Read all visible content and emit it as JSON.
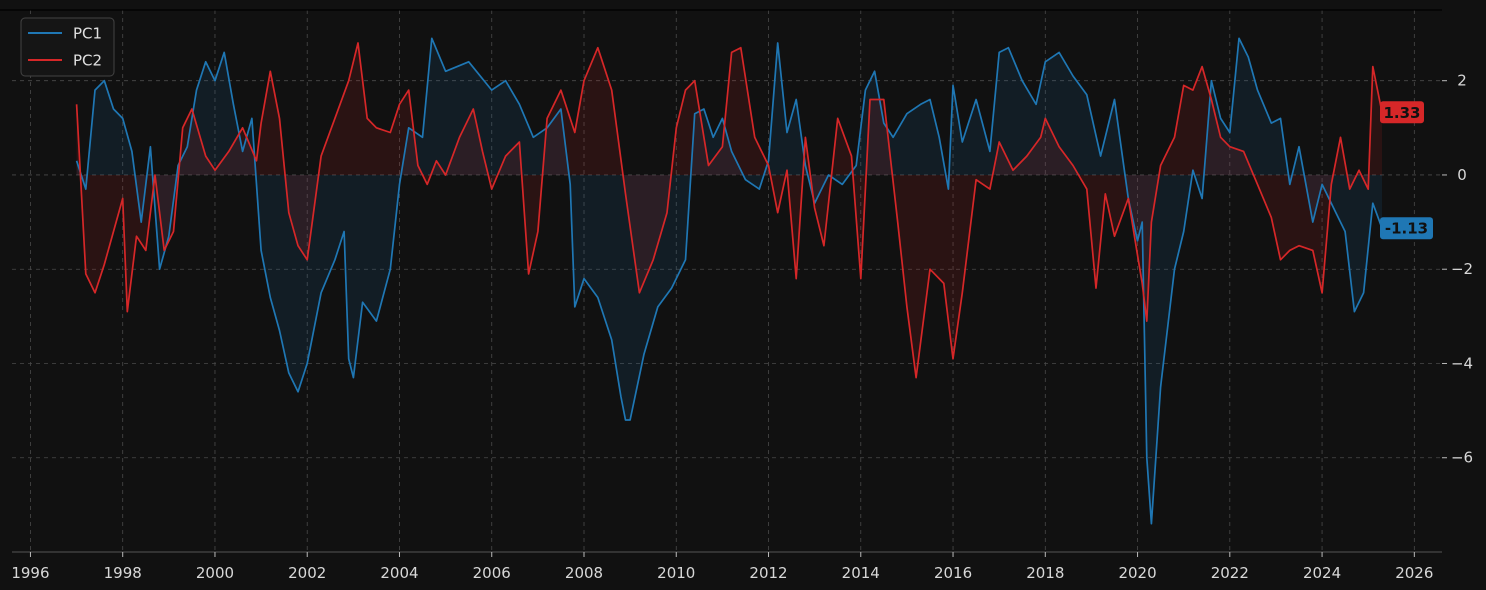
{
  "chart_data": {
    "type": "line",
    "title": "",
    "xlabel": "",
    "ylabel": "",
    "xlim": [
      1995.6,
      2026.6
    ],
    "ylim": [
      -8.0,
      3.5
    ],
    "x_ticks": [
      1996,
      1998,
      2000,
      2002,
      2004,
      2006,
      2008,
      2010,
      2012,
      2014,
      2016,
      2018,
      2020,
      2022,
      2024,
      2026
    ],
    "y_ticks": [
      -6,
      -4,
      -2,
      0,
      2
    ],
    "y_tick_labels": [
      "−6",
      "−4",
      "−2",
      "0",
      "2"
    ],
    "grid": true,
    "legend_position": "top-left",
    "zero_fill": true,
    "series": [
      {
        "name": "PC1",
        "color": "#1f77b4",
        "end_label": "-1.13",
        "x": [
          1997.0,
          1997.2,
          1997.4,
          1997.6,
          1997.8,
          1998.0,
          1998.2,
          1998.4,
          1998.6,
          1998.8,
          1999.0,
          1999.2,
          1999.4,
          1999.6,
          1999.8,
          2000.0,
          2000.2,
          2000.4,
          2000.6,
          2000.8,
          2001.0,
          2001.2,
          2001.4,
          2001.6,
          2001.8,
          2002.0,
          2002.3,
          2002.6,
          2002.8,
          2002.9,
          2003.0,
          2003.2,
          2003.5,
          2003.8,
          2004.0,
          2004.2,
          2004.5,
          2004.7,
          2005.0,
          2005.5,
          2006.0,
          2006.3,
          2006.6,
          2006.9,
          2007.2,
          2007.5,
          2007.7,
          2007.8,
          2008.0,
          2008.3,
          2008.6,
          2008.8,
          2008.9,
          2009.0,
          2009.3,
          2009.6,
          2009.9,
          2010.2,
          2010.4,
          2010.6,
          2010.8,
          2011.0,
          2011.2,
          2011.5,
          2011.8,
          2012.0,
          2012.2,
          2012.4,
          2012.6,
          2012.8,
          2013.0,
          2013.3,
          2013.6,
          2013.9,
          2014.1,
          2014.3,
          2014.5,
          2014.7,
          2015.0,
          2015.3,
          2015.5,
          2015.7,
          2015.9,
          2016.0,
          2016.2,
          2016.5,
          2016.8,
          2017.0,
          2017.2,
          2017.5,
          2017.8,
          2018.0,
          2018.3,
          2018.6,
          2018.9,
          2019.2,
          2019.5,
          2019.8,
          2020.0,
          2020.1,
          2020.2,
          2020.3,
          2020.5,
          2020.8,
          2021.0,
          2021.2,
          2021.4,
          2021.6,
          2021.8,
          2022.0,
          2022.2,
          2022.4,
          2022.6,
          2022.9,
          2023.1,
          2023.3,
          2023.5,
          2023.8,
          2024.0,
          2024.3,
          2024.5,
          2024.7,
          2024.9,
          2025.1,
          2025.3
        ],
        "y": [
          0.3,
          -0.3,
          1.8,
          2.0,
          1.4,
          1.2,
          0.5,
          -1.0,
          0.6,
          -2.0,
          -1.3,
          0.2,
          0.6,
          1.8,
          2.4,
          2.0,
          2.6,
          1.5,
          0.5,
          1.2,
          -1.6,
          -2.6,
          -3.3,
          -4.2,
          -4.6,
          -4.0,
          -2.5,
          -1.8,
          -1.2,
          -3.9,
          -4.3,
          -2.7,
          -3.1,
          -2.0,
          -0.2,
          1.0,
          0.8,
          2.9,
          2.2,
          2.4,
          1.8,
          2.0,
          1.5,
          0.8,
          1.0,
          1.4,
          -0.2,
          -2.8,
          -2.2,
          -2.6,
          -3.5,
          -4.7,
          -5.2,
          -5.2,
          -3.8,
          -2.8,
          -2.4,
          -1.8,
          1.3,
          1.4,
          0.8,
          1.2,
          0.5,
          -0.1,
          -0.3,
          0.3,
          2.8,
          0.9,
          1.6,
          0.2,
          -0.6,
          0.0,
          -0.2,
          0.2,
          1.8,
          2.2,
          1.1,
          0.8,
          1.3,
          1.5,
          1.6,
          0.8,
          -0.3,
          1.9,
          0.7,
          1.6,
          0.5,
          2.6,
          2.7,
          2.0,
          1.5,
          2.4,
          2.6,
          2.1,
          1.7,
          0.4,
          1.6,
          -0.5,
          -1.4,
          -1.0,
          -6.0,
          -7.4,
          -4.5,
          -2.0,
          -1.2,
          0.1,
          -0.5,
          2.0,
          1.2,
          0.9,
          2.9,
          2.5,
          1.8,
          1.1,
          1.2,
          -0.2,
          0.6,
          -1.0,
          -0.2,
          -0.8,
          -1.2,
          -2.9,
          -2.5,
          -0.6,
          -1.13
        ]
      },
      {
        "name": "PC2",
        "color": "#d62728",
        "end_label": "1.33",
        "x": [
          1997.0,
          1997.2,
          1997.4,
          1997.6,
          1997.8,
          1998.0,
          1998.1,
          1998.3,
          1998.5,
          1998.7,
          1998.9,
          1999.1,
          1999.3,
          1999.5,
          1999.8,
          2000.0,
          2000.3,
          2000.6,
          2000.9,
          2001.0,
          2001.2,
          2001.4,
          2001.6,
          2001.8,
          2002.0,
          2002.3,
          2002.6,
          2002.9,
          2003.1,
          2003.3,
          2003.5,
          2003.8,
          2004.0,
          2004.2,
          2004.4,
          2004.6,
          2004.8,
          2005.0,
          2005.3,
          2005.6,
          2005.8,
          2006.0,
          2006.3,
          2006.6,
          2006.8,
          2007.0,
          2007.2,
          2007.5,
          2007.8,
          2008.0,
          2008.3,
          2008.6,
          2008.9,
          2009.2,
          2009.5,
          2009.8,
          2010.0,
          2010.2,
          2010.4,
          2010.7,
          2011.0,
          2011.2,
          2011.4,
          2011.7,
          2012.0,
          2012.2,
          2012.4,
          2012.6,
          2012.8,
          2013.0,
          2013.2,
          2013.5,
          2013.8,
          2014.0,
          2014.2,
          2014.5,
          2014.8,
          2015.0,
          2015.2,
          2015.5,
          2015.8,
          2016.0,
          2016.2,
          2016.5,
          2016.8,
          2017.0,
          2017.3,
          2017.6,
          2017.9,
          2018.0,
          2018.3,
          2018.6,
          2018.9,
          2019.1,
          2019.3,
          2019.5,
          2019.8,
          2020.0,
          2020.1,
          2020.2,
          2020.3,
          2020.5,
          2020.8,
          2021.0,
          2021.2,
          2021.4,
          2021.6,
          2021.8,
          2022.0,
          2022.3,
          2022.6,
          2022.9,
          2023.1,
          2023.3,
          2023.5,
          2023.8,
          2024.0,
          2024.2,
          2024.4,
          2024.6,
          2024.8,
          2025.0,
          2025.1,
          2025.3
        ],
        "y": [
          1.5,
          -2.1,
          -2.5,
          -1.9,
          -1.2,
          -0.5,
          -2.9,
          -1.3,
          -1.6,
          0.0,
          -1.6,
          -1.2,
          1.0,
          1.4,
          0.4,
          0.1,
          0.5,
          1.0,
          0.3,
          1.1,
          2.2,
          1.2,
          -0.8,
          -1.5,
          -1.8,
          0.4,
          1.2,
          2.0,
          2.8,
          1.2,
          1.0,
          0.9,
          1.5,
          1.8,
          0.2,
          -0.2,
          0.3,
          0.0,
          0.8,
          1.4,
          0.5,
          -0.3,
          0.4,
          0.7,
          -2.1,
          -1.2,
          1.2,
          1.8,
          0.9,
          2.0,
          2.7,
          1.8,
          -0.4,
          -2.5,
          -1.8,
          -0.8,
          1.0,
          1.8,
          2.0,
          0.2,
          0.6,
          2.6,
          2.7,
          0.8,
          0.2,
          -0.8,
          0.1,
          -2.2,
          0.8,
          -0.7,
          -1.5,
          1.2,
          0.4,
          -2.2,
          1.6,
          1.6,
          -1.0,
          -2.8,
          -4.3,
          -2.0,
          -2.3,
          -3.9,
          -2.5,
          -0.1,
          -0.3,
          0.7,
          0.1,
          0.4,
          0.8,
          1.2,
          0.6,
          0.2,
          -0.3,
          -2.4,
          -0.4,
          -1.3,
          -0.5,
          -1.7,
          -2.3,
          -3.1,
          -1.0,
          0.2,
          0.8,
          1.9,
          1.8,
          2.3,
          1.6,
          0.8,
          0.6,
          0.5,
          -0.2,
          -0.9,
          -1.8,
          -1.6,
          -1.5,
          -1.6,
          -2.5,
          -0.2,
          0.8,
          -0.3,
          0.1,
          -0.3,
          2.3,
          1.33
        ]
      }
    ]
  }
}
